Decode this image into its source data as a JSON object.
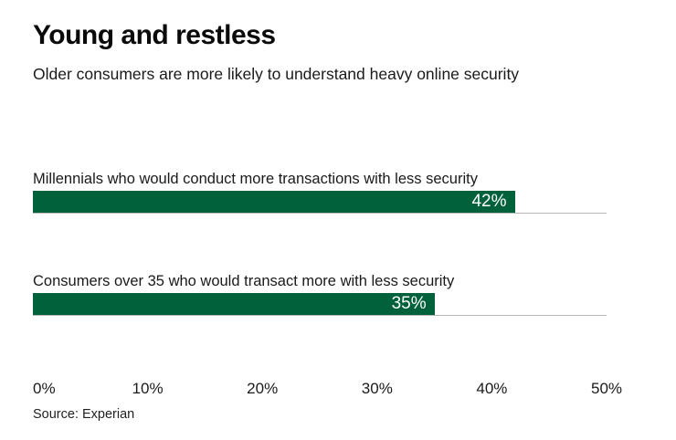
{
  "title": "Young and restless",
  "subtitle": "Older consumers are more likely to understand heavy online security",
  "source": "Source: Experian",
  "colors": {
    "bar": "#00613a",
    "baseline": "#b9b9b9",
    "value_text": "#ffffff"
  },
  "chart_data": {
    "type": "bar",
    "orientation": "horizontal",
    "title": "Young and restless",
    "subtitle": "Older consumers are more likely to understand heavy online security",
    "categories": [
      "Millennials who would conduct more transactions with less security",
      "Consumers over 35 who would transact more with less security"
    ],
    "values": [
      42,
      35
    ],
    "value_labels": [
      "42%",
      "35%"
    ],
    "xlabel": "",
    "ylabel": "",
    "xlim": [
      0,
      50
    ],
    "x_ticks": [
      "0%",
      "10%",
      "20%",
      "30%",
      "40%",
      "50%"
    ],
    "grid": false,
    "legend": false,
    "source": "Source: Experian"
  }
}
